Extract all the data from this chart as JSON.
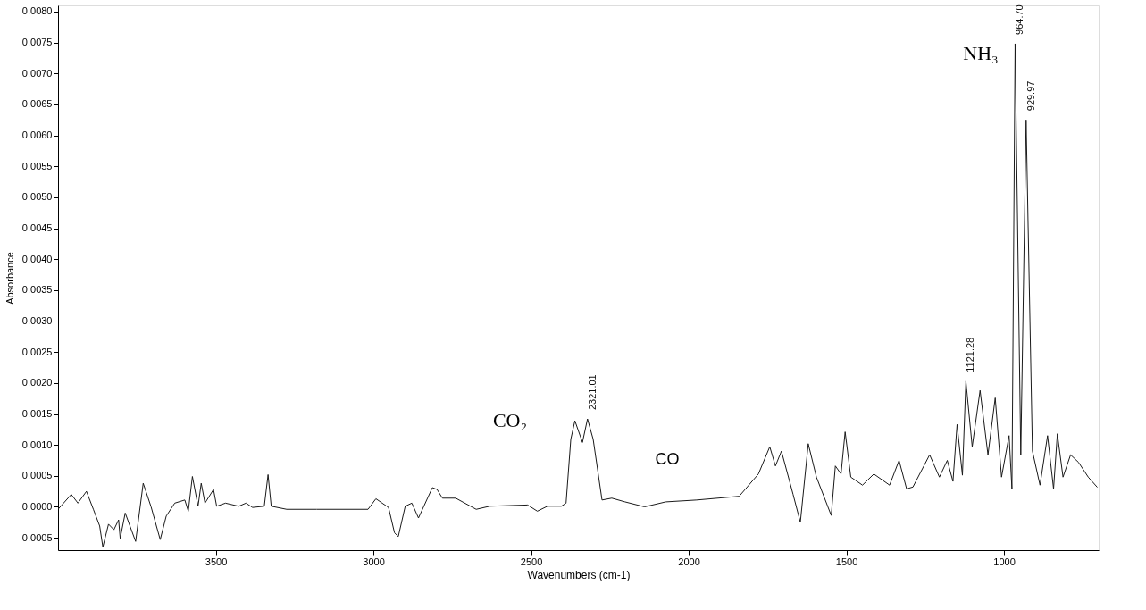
{
  "chart_data": {
    "type": "line",
    "xlabel": "Wavenumbers (cm-1)",
    "ylabel": "Absorbance",
    "xlim": [
      4000,
      700
    ],
    "xticks": [
      3500,
      3000,
      2500,
      2000,
      1500,
      1000
    ],
    "ylim": [
      -0.0007,
      0.0081
    ],
    "yticks": [
      {
        "value": -0.0005,
        "label": "-0.0005"
      },
      {
        "value": 0,
        "label": "0.0000"
      },
      {
        "value": 0.0005,
        "label": "0.0005"
      },
      {
        "value": 0.001,
        "label": "0.0010"
      },
      {
        "value": 0.0015,
        "label": "0.0015"
      },
      {
        "value": 0.002,
        "label": "0.0020"
      },
      {
        "value": 0.0025,
        "label": "0.0025"
      },
      {
        "value": 0.003,
        "label": "0.0030"
      },
      {
        "value": 0.0035,
        "label": "0.0035"
      },
      {
        "value": 0.004,
        "label": "0.0040"
      },
      {
        "value": 0.0045,
        "label": "0.0045"
      },
      {
        "value": 0.005,
        "label": "0.0050"
      },
      {
        "value": 0.0055,
        "label": "0.0055"
      },
      {
        "value": 0.006,
        "label": "0.0060"
      },
      {
        "value": 0.0065,
        "label": "0.0065"
      },
      {
        "value": 0.007,
        "label": "0.0070"
      },
      {
        "value": 0.0075,
        "label": "0.0075"
      },
      {
        "value": 0.008,
        "label": "0.0080"
      }
    ],
    "grid": false,
    "marker": "none",
    "line_style": "solid",
    "x": [
      4000,
      3958,
      3937,
      3910,
      3888,
      3868,
      3858,
      3840,
      3823,
      3808,
      3803,
      3787,
      3754,
      3730,
      3705,
      3676,
      3657,
      3630,
      3598,
      3587,
      3574,
      3556,
      3546,
      3534,
      3507,
      3497,
      3469,
      3427,
      3404,
      3383,
      3346,
      3334,
      3324,
      3275,
      3180,
      3017,
      2992,
      2952,
      2933,
      2921,
      2899,
      2878,
      2857,
      2813,
      2798,
      2781,
      2739,
      2674,
      2631,
      2511,
      2480,
      2448,
      2404,
      2389,
      2374,
      2361,
      2337,
      2321,
      2303,
      2275,
      2244,
      2202,
      2140,
      2073,
      1975,
      1840,
      1779,
      1743,
      1725,
      1706,
      1669,
      1646,
      1621,
      1595,
      1548,
      1535,
      1517,
      1504,
      1486,
      1449,
      1413,
      1363,
      1333,
      1309,
      1289,
      1236,
      1205,
      1180,
      1162,
      1149,
      1132,
      1121,
      1101,
      1076,
      1051,
      1028,
      1008,
      984,
      975,
      965,
      947,
      930,
      910,
      886,
      862,
      843,
      831,
      813,
      789,
      764,
      733,
      705
    ],
    "series": [
      {
        "color": "#1a1a1a",
        "values": [
          -4e-05,
          0.0002,
          6e-05,
          0.00025,
          -4e-05,
          -0.00031,
          -0.00065,
          -0.00028,
          -0.00037,
          -0.00021,
          -0.00051,
          -0.0001,
          -0.00056,
          0.00038,
          0.0,
          -0.00053,
          -0.00015,
          6e-05,
          0.00011,
          -7e-05,
          0.00049,
          1e-05,
          0.00038,
          6e-05,
          0.00028,
          1e-05,
          6e-05,
          1e-05,
          6e-05,
          -1e-05,
          1e-05,
          0.00052,
          1e-05,
          -4e-05,
          -4e-05,
          -4e-05,
          0.00013,
          -1e-05,
          -0.00042,
          -0.00048,
          1e-05,
          6e-05,
          -0.00018,
          0.00031,
          0.00028,
          0.00014,
          0.00014,
          -4e-05,
          1e-05,
          3e-05,
          -7e-05,
          1e-05,
          1e-05,
          6e-05,
          0.00109,
          0.00139,
          0.00104,
          0.00142,
          0.00109,
          0.00011,
          0.00014,
          8e-05,
          0.0,
          8e-05,
          0.00011,
          0.00017,
          0.00053,
          0.00097,
          0.00066,
          0.0009,
          0.0002,
          -0.00025,
          0.00102,
          0.00048,
          -0.00014,
          0.00066,
          0.00053,
          0.00121,
          0.00048,
          0.00035,
          0.00053,
          0.00035,
          0.00075,
          0.00029,
          0.00032,
          0.00084,
          0.00048,
          0.00075,
          0.00041,
          0.00133,
          0.00051,
          0.00203,
          0.00097,
          0.00188,
          0.00084,
          0.00176,
          0.00048,
          0.00115,
          0.00029,
          0.00748,
          0.00084,
          0.00625,
          0.0009,
          0.00035,
          0.00115,
          0.00029,
          0.00118,
          0.00048,
          0.00084,
          0.00072,
          0.00048,
          0.00032
        ]
      }
    ],
    "annotations": [
      {
        "text": "2321.01",
        "x": 2321,
        "y": 0.00142
      },
      {
        "text": "1121.28",
        "x": 1121,
        "y": 0.00203
      },
      {
        "text": "964.70",
        "x": 965,
        "y": 0.00748
      },
      {
        "text": "929.97",
        "x": 930,
        "y": 0.00625
      },
      "CO₂",
      "CO",
      "NH₃"
    ]
  }
}
